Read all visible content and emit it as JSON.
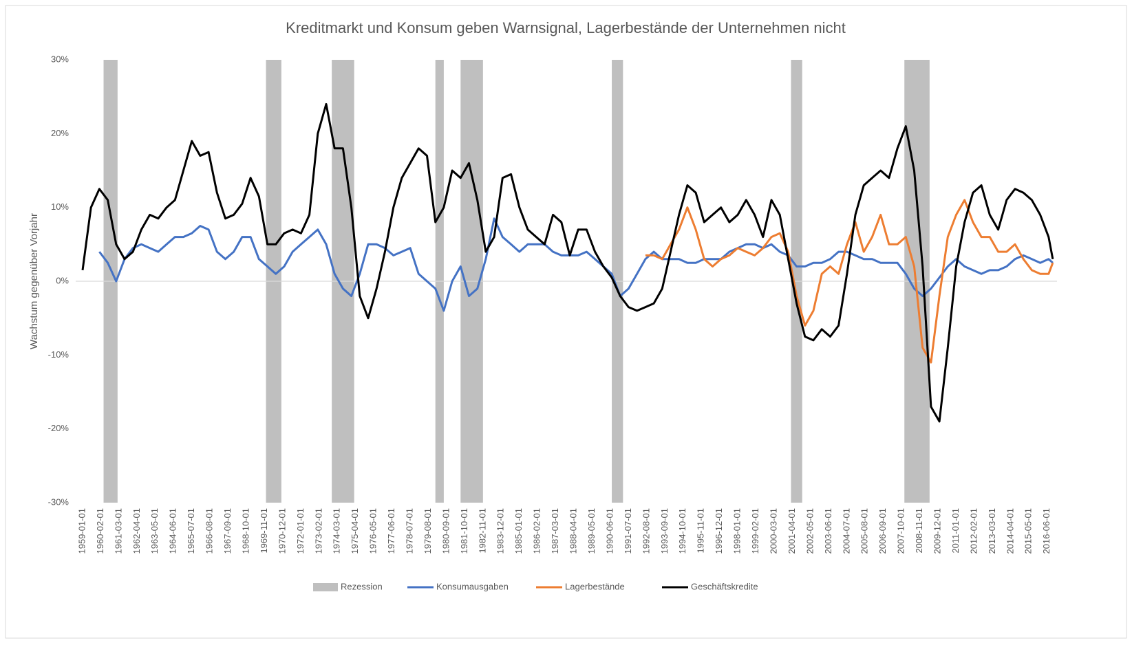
{
  "chart_data": {
    "type": "line",
    "title": "Kreditmarkt und Konsum geben Warnsignal, Lagerbestände der Unternehmen nicht",
    "y_label": "Wachstum gegenüber Vorjahr",
    "legend": "bottom",
    "ylim": [
      -30,
      30
    ],
    "yticks": [
      {
        "value": -30,
        "label": "-30%"
      },
      {
        "value": -20,
        "label": "-20%"
      },
      {
        "value": -10,
        "label": "-10%"
      },
      {
        "value": 0,
        "label": "0%"
      },
      {
        "value": 10,
        "label": "10%"
      },
      {
        "value": 20,
        "label": "20%"
      },
      {
        "value": 30,
        "label": "30%"
      }
    ],
    "xlim": [
      "1959-01-01",
      "2017-01-01"
    ],
    "xticks": [
      "1959-01-01",
      "1960-02-01",
      "1961-03-01",
      "1962-04-01",
      "1963-05-01",
      "1964-06-01",
      "1965-07-01",
      "1966-08-01",
      "1967-09-01",
      "1968-10-01",
      "1969-11-01",
      "1970-12-01",
      "1972-01-01",
      "1973-02-01",
      "1974-03-01",
      "1975-04-01",
      "1976-05-01",
      "1977-06-01",
      "1978-07-01",
      "1979-08-01",
      "1980-09-01",
      "1981-10-01",
      "1982-11-01",
      "1983-12-01",
      "1985-01-01",
      "1986-02-01",
      "1987-03-01",
      "1988-04-01",
      "1989-05-01",
      "1990-06-01",
      "1991-07-01",
      "1992-08-01",
      "1993-09-01",
      "1994-10-01",
      "1995-11-01",
      "1996-12-01",
      "1998-01-01",
      "1999-02-01",
      "2000-03-01",
      "2001-04-01",
      "2002-05-01",
      "2003-06-01",
      "2004-07-01",
      "2005-08-01",
      "2006-09-01",
      "2007-10-01",
      "2008-11-01",
      "2009-12-01",
      "2011-01-01",
      "2012-02-01",
      "2013-03-01",
      "2014-04-01",
      "2015-05-01",
      "2016-06-01"
    ],
    "recession": {
      "name": "Rezession",
      "color": "#bfbfbf",
      "periods": [
        {
          "start": "1960-04-01",
          "end": "1961-02-01"
        },
        {
          "start": "1969-12-01",
          "end": "1970-11-01"
        },
        {
          "start": "1973-11-01",
          "end": "1975-03-01"
        },
        {
          "start": "1980-01-01",
          "end": "1980-07-01"
        },
        {
          "start": "1981-07-01",
          "end": "1982-11-01"
        },
        {
          "start": "1990-07-01",
          "end": "1991-03-01"
        },
        {
          "start": "2001-03-01",
          "end": "2001-11-01"
        },
        {
          "start": "2007-12-01",
          "end": "2009-06-01"
        }
      ]
    },
    "x": [
      "1959-01-01",
      "1959-07-01",
      "1960-01-01",
      "1960-07-01",
      "1961-01-01",
      "1961-07-01",
      "1962-01-01",
      "1962-07-01",
      "1963-01-01",
      "1963-07-01",
      "1964-01-01",
      "1964-07-01",
      "1965-01-01",
      "1965-07-01",
      "1966-01-01",
      "1966-07-01",
      "1967-01-01",
      "1967-07-01",
      "1968-01-01",
      "1968-07-01",
      "1969-01-01",
      "1969-07-01",
      "1970-01-01",
      "1970-07-01",
      "1971-01-01",
      "1971-07-01",
      "1972-01-01",
      "1972-07-01",
      "1973-01-01",
      "1973-07-01",
      "1974-01-01",
      "1974-07-01",
      "1975-01-01",
      "1975-07-01",
      "1976-01-01",
      "1976-07-01",
      "1977-01-01",
      "1977-07-01",
      "1978-01-01",
      "1978-07-01",
      "1979-01-01",
      "1979-07-01",
      "1980-01-01",
      "1980-07-01",
      "1981-01-01",
      "1981-07-01",
      "1982-01-01",
      "1982-07-01",
      "1983-01-01",
      "1983-07-01",
      "1984-01-01",
      "1984-07-01",
      "1985-01-01",
      "1985-07-01",
      "1986-01-01",
      "1986-07-01",
      "1987-01-01",
      "1987-07-01",
      "1988-01-01",
      "1988-07-01",
      "1989-01-01",
      "1989-07-01",
      "1990-01-01",
      "1990-07-01",
      "1991-01-01",
      "1991-07-01",
      "1992-01-01",
      "1992-07-01",
      "1993-01-01",
      "1993-07-01",
      "1994-01-01",
      "1994-07-01",
      "1995-01-01",
      "1995-07-01",
      "1996-01-01",
      "1996-07-01",
      "1997-01-01",
      "1997-07-01",
      "1998-01-01",
      "1998-07-01",
      "1999-01-01",
      "1999-07-01",
      "2000-01-01",
      "2000-07-01",
      "2001-01-01",
      "2001-07-01",
      "2002-01-01",
      "2002-07-01",
      "2003-01-01",
      "2003-07-01",
      "2004-01-01",
      "2004-07-01",
      "2005-01-01",
      "2005-07-01",
      "2006-01-01",
      "2006-07-01",
      "2007-01-01",
      "2007-07-01",
      "2008-01-01",
      "2008-07-01",
      "2009-01-01",
      "2009-07-01",
      "2010-01-01",
      "2010-07-01",
      "2011-01-01",
      "2011-07-01",
      "2012-01-01",
      "2012-07-01",
      "2013-01-01",
      "2013-07-01",
      "2014-01-01",
      "2014-07-01",
      "2015-01-01",
      "2015-07-01",
      "2016-01-01",
      "2016-07-01",
      "2016-10-01"
    ],
    "series": [
      {
        "name": "Konsumausgaben",
        "color": "#4472c4",
        "values": [
          null,
          null,
          4,
          2.5,
          0,
          3,
          4.5,
          5,
          4.5,
          4,
          5,
          6,
          6,
          6.5,
          7.5,
          7,
          4,
          3,
          4,
          6,
          6,
          3,
          2,
          1,
          2,
          4,
          5,
          6,
          7,
          5,
          1,
          -1,
          -2,
          1,
          5,
          5,
          4.5,
          3.5,
          4,
          4.5,
          1,
          0,
          -1,
          -4,
          0,
          2,
          -2,
          -1,
          3,
          8.5,
          6,
          5,
          4,
          5,
          5,
          5,
          4,
          3.5,
          3.5,
          3.5,
          4,
          3,
          2,
          1,
          -2,
          -1,
          1,
          3,
          4,
          3,
          3,
          3,
          2.5,
          2.5,
          3,
          3,
          3,
          4,
          4.5,
          5,
          5,
          4.5,
          5,
          4,
          3.5,
          2,
          2,
          2.5,
          2.5,
          3,
          4,
          4,
          3.5,
          3,
          3,
          2.5,
          2.5,
          2.5,
          1,
          -1,
          -2,
          -1,
          0.5,
          2,
          3,
          2,
          1.5,
          1,
          1.5,
          1.5,
          2,
          3,
          3.5,
          3,
          2.5,
          3,
          2.5
        ]
      },
      {
        "name": "Lagerbestände",
        "color": "#ed7d31",
        "values": [
          null,
          null,
          null,
          null,
          null,
          null,
          null,
          null,
          null,
          null,
          null,
          null,
          null,
          null,
          null,
          null,
          null,
          null,
          null,
          null,
          null,
          null,
          null,
          null,
          null,
          null,
          null,
          null,
          null,
          null,
          null,
          null,
          null,
          null,
          null,
          null,
          null,
          null,
          null,
          null,
          null,
          null,
          null,
          null,
          null,
          null,
          null,
          null,
          null,
          null,
          null,
          null,
          null,
          null,
          null,
          null,
          null,
          null,
          null,
          null,
          null,
          null,
          null,
          null,
          null,
          null,
          null,
          3.5,
          3.5,
          3,
          5,
          7,
          10,
          7,
          3,
          2,
          3,
          3.5,
          4.5,
          4,
          3.5,
          4.5,
          6,
          6.5,
          4,
          -2,
          -6,
          -4,
          1,
          2,
          1,
          5,
          8,
          4,
          6,
          9,
          5,
          5,
          6,
          2,
          -9,
          -11,
          -2,
          6,
          9,
          11,
          8,
          6,
          6,
          4,
          4,
          5,
          3,
          1.5,
          1,
          1,
          2.5
        ]
      },
      {
        "name": "Geschäftskredite",
        "color": "#000000",
        "values": [
          1.5,
          10,
          12.5,
          11,
          5,
          3,
          4,
          7,
          9,
          8.5,
          10,
          11,
          15,
          19,
          17,
          17.5,
          12,
          8.5,
          9,
          10.5,
          14,
          11.5,
          5,
          5,
          6.5,
          7,
          6.5,
          9,
          20,
          24,
          18,
          18,
          10,
          -2,
          -5,
          -1,
          4,
          10,
          14,
          16,
          18,
          17,
          8,
          10,
          15,
          14,
          16,
          11,
          4,
          6,
          14,
          14.5,
          10,
          7,
          6,
          5,
          9,
          8,
          3.5,
          7,
          7,
          4,
          2,
          0.5,
          -2,
          -3.5,
          -4,
          -3.5,
          -3,
          -1,
          4,
          9,
          13,
          12,
          8,
          9,
          10,
          8,
          9,
          11,
          9,
          6,
          11,
          9,
          3,
          -3,
          -7.5,
          -8,
          -6.5,
          -7.5,
          -6,
          1,
          9,
          13,
          14,
          15,
          14,
          18,
          21,
          15,
          2,
          -17,
          -19,
          -9,
          2,
          8,
          12,
          13,
          9,
          7,
          11,
          12.5,
          12,
          11,
          9,
          6,
          3
        ]
      }
    ]
  }
}
